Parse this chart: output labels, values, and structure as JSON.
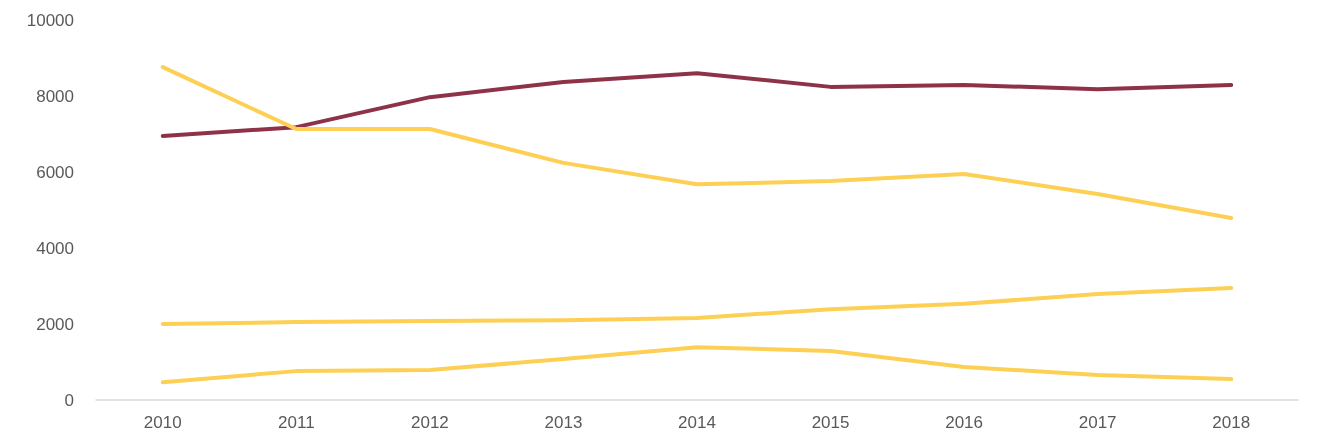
{
  "chart_data": {
    "type": "line",
    "categories": [
      "2010",
      "2011",
      "2012",
      "2013",
      "2014",
      "2015",
      "2016",
      "2017",
      "2018"
    ],
    "series": [
      {
        "color": "#8e3248",
        "values": [
          6950,
          7180,
          7970,
          8370,
          8600,
          8240,
          8290,
          8180,
          8290
        ]
      },
      {
        "color": "#fdd055",
        "values": [
          8760,
          7130,
          7130,
          6240,
          5680,
          5760,
          5950,
          5420,
          4790
        ]
      },
      {
        "color": "#fdd055",
        "values": [
          2000,
          2050,
          2080,
          2100,
          2160,
          2390,
          2530,
          2790,
          2950
        ]
      },
      {
        "color": "#fdd055",
        "values": [
          470,
          760,
          790,
          1080,
          1390,
          1290,
          870,
          660,
          550
        ]
      }
    ],
    "ylim": [
      0,
      10000
    ],
    "yticks": [
      0,
      2000,
      4000,
      6000,
      8000,
      10000
    ],
    "grid": false,
    "marker": "none",
    "line_style": "solid"
  }
}
